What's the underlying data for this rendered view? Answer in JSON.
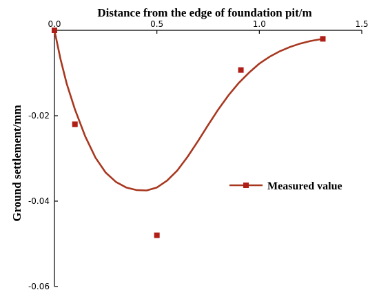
{
  "chart_data": {
    "type": "scatter",
    "title": "",
    "xlabel": "Distance from the edge of foundation pit/m",
    "ylabel": "Ground settlement/mm",
    "x_axis_position": "top",
    "xlim": [
      0.0,
      1.5
    ],
    "ylim": [
      -0.06,
      0.0
    ],
    "x_ticks": [
      0.0,
      0.5,
      1.0,
      1.5
    ],
    "x_tick_labels": [
      "0.0",
      "0.5",
      "1.0",
      "1.5"
    ],
    "y_ticks": [
      -0.02,
      -0.04,
      -0.06
    ],
    "y_tick_labels": [
      "-0.02",
      "-0.04",
      "-0.06"
    ],
    "grid": false,
    "legend_position": "right",
    "colors": {
      "series": "#b01f17",
      "curve": "#a8371f"
    },
    "series": [
      {
        "name": "Measured value",
        "marker": "square",
        "points": [
          {
            "x": 0.0,
            "y": 0.0
          },
          {
            "x": 0.1,
            "y": -0.022
          },
          {
            "x": 0.5,
            "y": -0.048
          },
          {
            "x": 0.91,
            "y": -0.0093
          },
          {
            "x": 1.31,
            "y": -0.002
          }
        ]
      }
    ],
    "fit_curve": [
      {
        "x": 0.0,
        "y": 0.0
      },
      {
        "x": 0.03,
        "y": -0.0068
      },
      {
        "x": 0.06,
        "y": -0.0125
      },
      {
        "x": 0.1,
        "y": -0.0185
      },
      {
        "x": 0.15,
        "y": -0.0248
      },
      {
        "x": 0.2,
        "y": -0.0298
      },
      {
        "x": 0.25,
        "y": -0.0333
      },
      {
        "x": 0.3,
        "y": -0.0355
      },
      {
        "x": 0.35,
        "y": -0.0368
      },
      {
        "x": 0.4,
        "y": -0.0374
      },
      {
        "x": 0.45,
        "y": -0.0375
      },
      {
        "x": 0.5,
        "y": -0.0368
      },
      {
        "x": 0.55,
        "y": -0.0352
      },
      {
        "x": 0.6,
        "y": -0.0328
      },
      {
        "x": 0.65,
        "y": -0.0296
      },
      {
        "x": 0.7,
        "y": -0.026
      },
      {
        "x": 0.75,
        "y": -0.0222
      },
      {
        "x": 0.8,
        "y": -0.0185
      },
      {
        "x": 0.85,
        "y": -0.0152
      },
      {
        "x": 0.9,
        "y": -0.0123
      },
      {
        "x": 0.95,
        "y": -0.0099
      },
      {
        "x": 1.0,
        "y": -0.0078
      },
      {
        "x": 1.05,
        "y": -0.0062
      },
      {
        "x": 1.1,
        "y": -0.0049
      },
      {
        "x": 1.15,
        "y": -0.0039
      },
      {
        "x": 1.2,
        "y": -0.0031
      },
      {
        "x": 1.25,
        "y": -0.0025
      },
      {
        "x": 1.31,
        "y": -0.002
      }
    ]
  }
}
